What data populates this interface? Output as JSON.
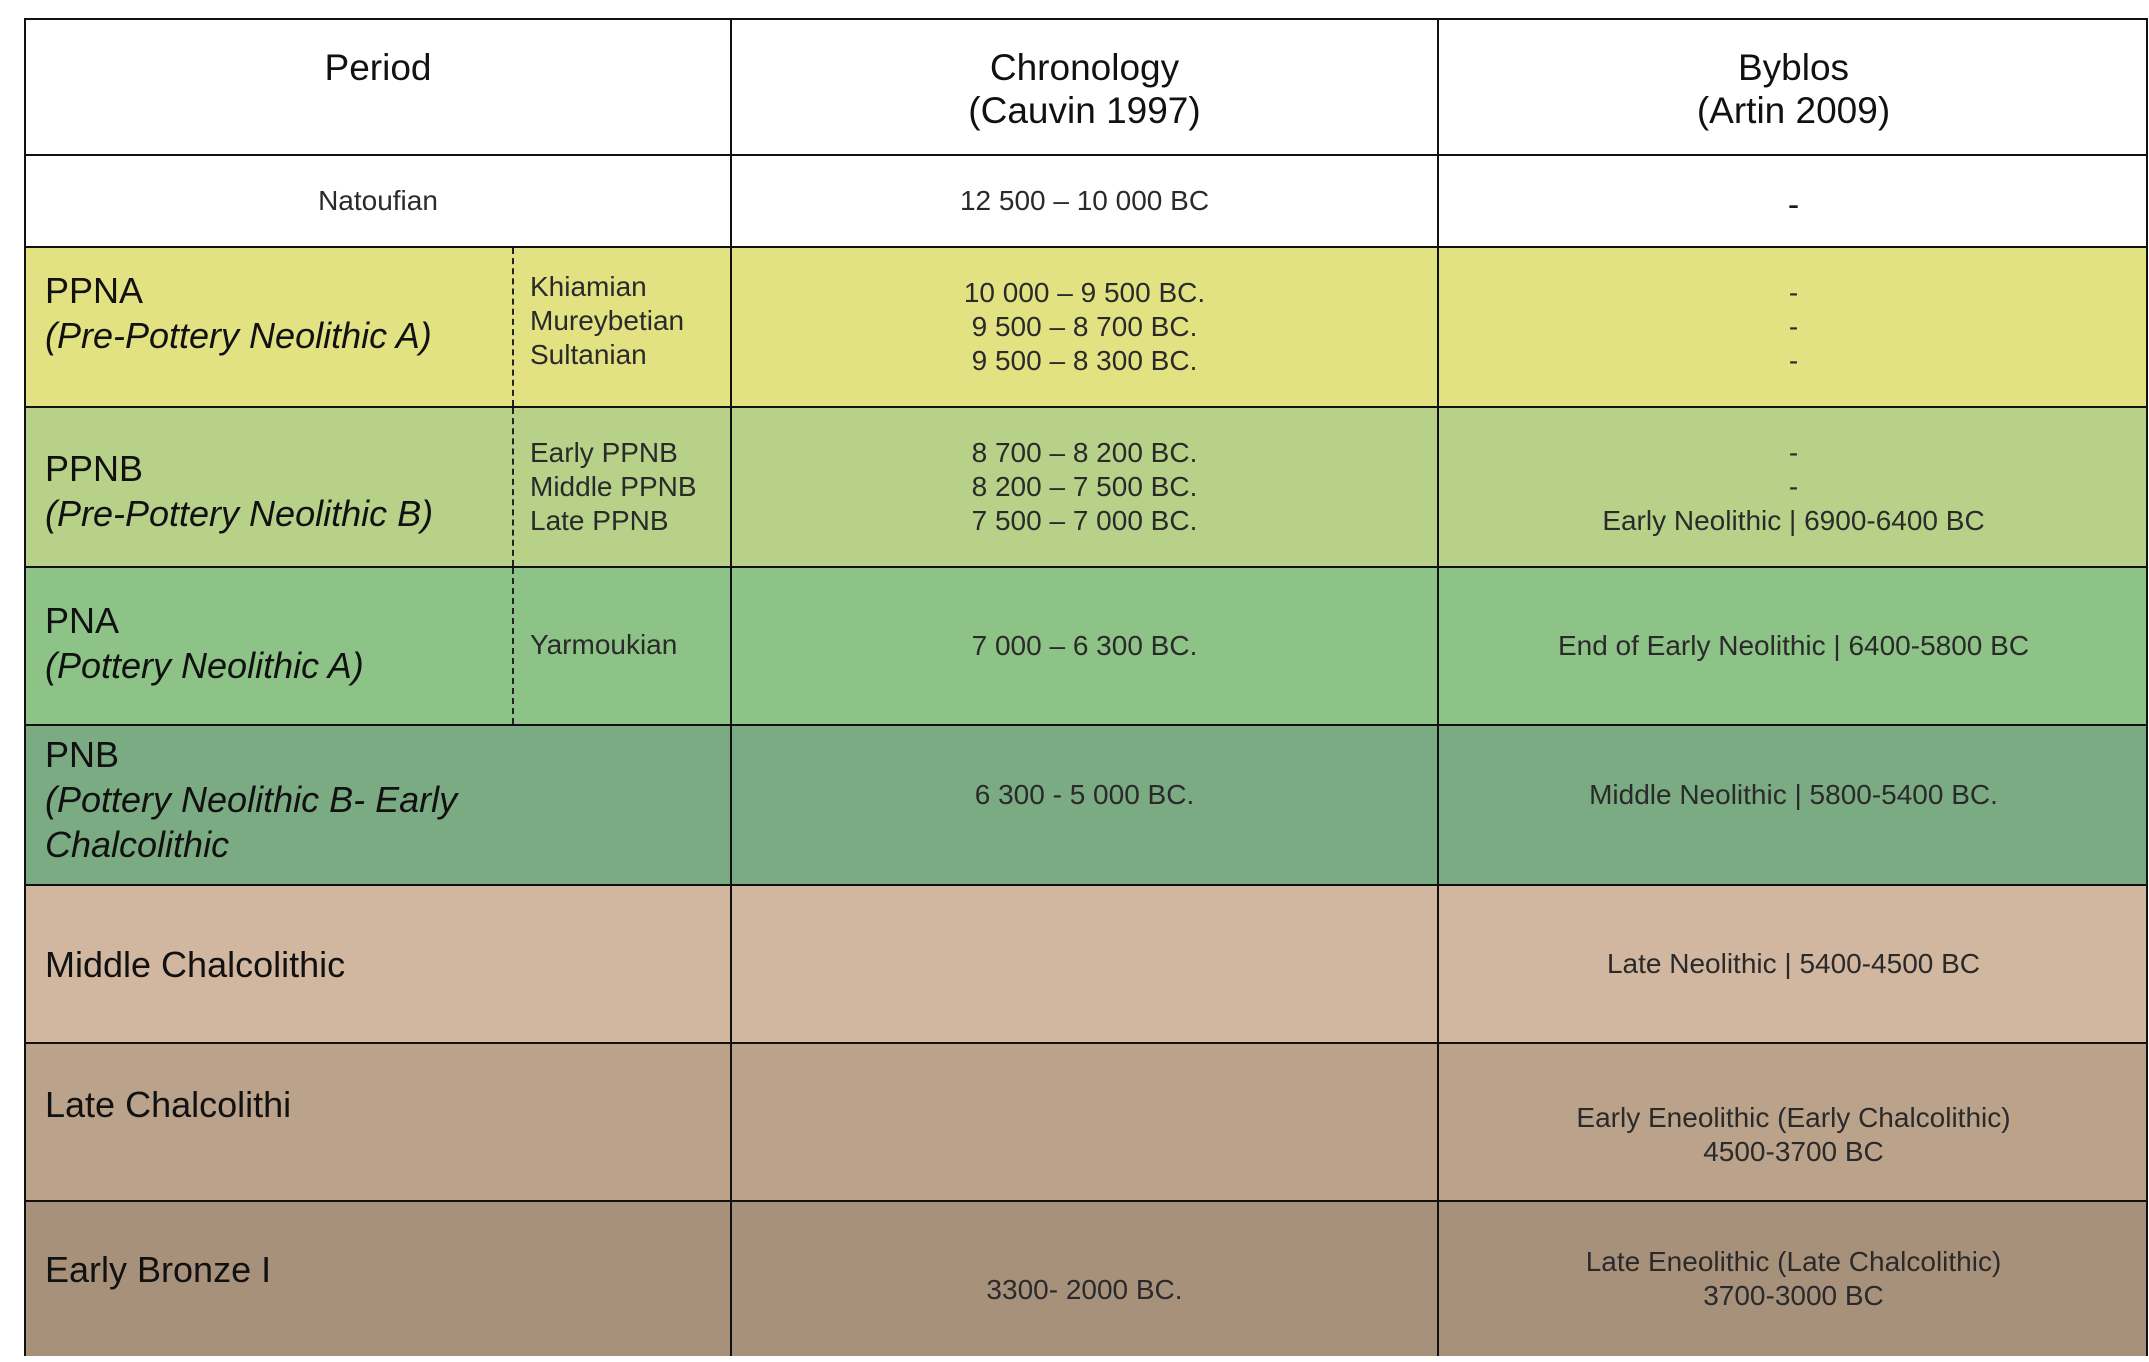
{
  "header": {
    "period": "Period",
    "chronology_line1": "Chronology",
    "chronology_line2": "(Cauvin 1997)",
    "byblos_line1": "Byblos",
    "byblos_line2": "(Artin 2009)"
  },
  "rows": [
    {
      "period": "Natoufian",
      "chronology": "12 500 – 10 000 BC",
      "byblos": "-",
      "color": "#ffffff"
    },
    {
      "name": "PPNA",
      "full": "(Pre-Pottery Neolithic A)",
      "subs": [
        "Khiamian",
        "Mureybetian",
        "Sultanian"
      ],
      "chronology": [
        "10 000 – 9 500 BC.",
        "9 500 – 8 700 BC.",
        "9 500 – 8 300 BC."
      ],
      "byblos": [
        "-",
        "-",
        "-"
      ],
      "color": "#e2e283"
    },
    {
      "name": "PPNB",
      "full": "(Pre-Pottery Neolithic B)",
      "subs": [
        "Early PPNB",
        "Middle PPNB",
        "Late PPNB"
      ],
      "chronology": [
        "8 700 – 8 200 BC.",
        "8 200 – 7 500 BC.",
        "7 500 – 7 000 BC."
      ],
      "byblos": [
        "-",
        "-",
        "Early Neolithic | 6900-6400 BC"
      ],
      "color": "#b7d189"
    },
    {
      "name": "PNA",
      "full": "(Pottery Neolithic A)",
      "subs": [
        "Yarmoukian"
      ],
      "chronology": "7 000 – 6 300 BC.",
      "byblos": "End of Early Neolithic | 6400-5800 BC",
      "color": "#8dc386"
    },
    {
      "name": "PNB",
      "full_line1": "(Pottery Neolithic B- Early",
      "full_line2": "Chalcolithic",
      "chronology": "6 300 - 5 000 BC.",
      "byblos": "Middle Neolithic | 5800-5400 BC.",
      "color": "#7bab82"
    },
    {
      "name": "Middle Chalcolithic",
      "chronology": "",
      "byblos": "Late Neolithic | 5400-4500 BC",
      "color": "#d1b6a0"
    },
    {
      "name": "Late Chalcolithi",
      "chronology": "",
      "byblos_line1": "Early Eneolithic (Early Chalcolithic)",
      "byblos_line2": "4500-3700 BC",
      "color": "#baa28b"
    },
    {
      "name": "Early Bronze I",
      "chronology": "3300- 2000 BC.",
      "byblos_line1": "Late Eneolithic (Late Chalcolithic)",
      "byblos_line2": "3700-3000 BC",
      "color": "#a8917b"
    }
  ]
}
